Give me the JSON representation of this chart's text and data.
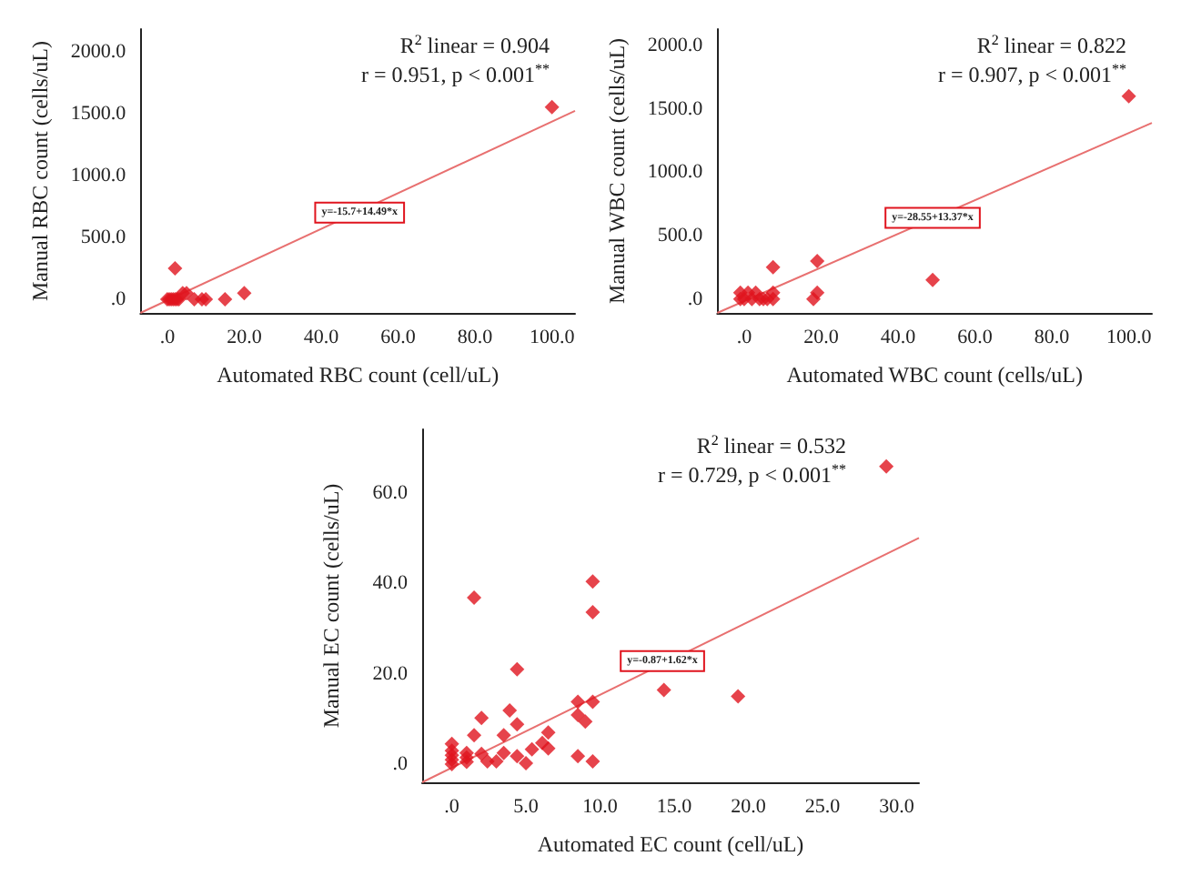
{
  "chart_data": [
    {
      "type": "scatter",
      "xlabel": "Automated RBC count (cell/uL)",
      "ylabel": "Manual RBC count (cells/uL)",
      "xlim": [
        -7,
        106
      ],
      "ylim": [
        -110,
        2180
      ],
      "xticks": [
        {
          "value": 0,
          "label": ".0"
        },
        {
          "value": 20,
          "label": "20.0"
        },
        {
          "value": 40,
          "label": "40.0"
        },
        {
          "value": 60,
          "label": "60.0"
        },
        {
          "value": 80,
          "label": "80.0"
        },
        {
          "value": 100,
          "label": "100.0"
        }
      ],
      "yticks": [
        {
          "value": 0,
          "label": ".0"
        },
        {
          "value": 500,
          "label": "500.0"
        },
        {
          "value": 1000,
          "label": "1000.0"
        },
        {
          "value": 1500,
          "label": "1500.0"
        },
        {
          "value": 2000,
          "label": "2000.0"
        }
      ],
      "grid": false,
      "series": [
        {
          "color": "#e0141e",
          "marker": "diamond",
          "x": [
            0,
            0.5,
            1,
            1.5,
            2,
            2.5,
            2,
            3,
            4,
            5,
            7,
            9,
            10,
            15,
            20,
            100
          ],
          "values": [
            0,
            0,
            0,
            0,
            0,
            0,
            250,
            0,
            50,
            50,
            0,
            0,
            0,
            0,
            50,
            1550
          ]
        },
        {
          "type": "line",
          "color": "#e87070",
          "marker": "none",
          "line_style": "solid",
          "x": [
            -7,
            106
          ],
          "values": [
            -110,
            1520
          ]
        }
      ],
      "annotations": [
        "R$^{2}$ linear = 0.904",
        "r = 0.951, p < 0.001$^{**}$",
        {
          "text": "y=-15.7+14.49*x",
          "x": 50,
          "y": 700
        }
      ]
    },
    {
      "type": "scatter",
      "xlabel": "Automated WBC count (cells/uL)",
      "ylabel": "Manual WBC count (cells/uL)",
      "xlim": [
        -7,
        106
      ],
      "ylim": [
        -110,
        2130
      ],
      "xticks": [
        {
          "value": 0,
          "label": ".0"
        },
        {
          "value": 20,
          "label": "20.0"
        },
        {
          "value": 40,
          "label": "40.0"
        },
        {
          "value": 60,
          "label": "60.0"
        },
        {
          "value": 80,
          "label": "80.0"
        },
        {
          "value": 100,
          "label": "100.0"
        }
      ],
      "yticks": [
        {
          "value": 0,
          "label": ".0"
        },
        {
          "value": 500,
          "label": "500.0"
        },
        {
          "value": 1000,
          "label": "1000.0"
        },
        {
          "value": 1500,
          "label": "1500.0"
        },
        {
          "value": 2000,
          "label": "2000.0"
        }
      ],
      "grid": false,
      "series": [
        {
          "color": "#e0141e",
          "marker": "diamond",
          "x": [
            -1,
            -1,
            0,
            1,
            2,
            3,
            4,
            5,
            6,
            7.5,
            7.5,
            7.5,
            18,
            19,
            19,
            49,
            100
          ],
          "values": [
            50,
            0,
            0,
            50,
            0,
            50,
            0,
            0,
            0,
            50,
            0,
            250,
            0,
            50,
            300,
            150,
            1600
          ]
        },
        {
          "type": "line",
          "color": "#e87070",
          "marker": "none",
          "line_style": "solid",
          "x": [
            -7,
            106
          ],
          "values": [
            -110,
            1390
          ]
        }
      ],
      "annotations": [
        "R$^{2}$ linear = 0.822",
        "r = 0.907, p < 0.001$^{**}$",
        {
          "text": "y=-28.55+13.37*x",
          "x": 49,
          "y": 640
        }
      ]
    },
    {
      "type": "scatter",
      "xlabel": "Automated EC count (cell/uL)",
      "ylabel": "Manual EC count (cells/uL)",
      "xlim": [
        -2,
        31.5
      ],
      "ylim": [
        -4,
        74
      ],
      "xticks": [
        {
          "value": 0,
          "label": ".0"
        },
        {
          "value": 5,
          "label": "5.0"
        },
        {
          "value": 10,
          "label": "10.0"
        },
        {
          "value": 15,
          "label": "15.0"
        },
        {
          "value": 20,
          "label": "20.0"
        },
        {
          "value": 25,
          "label": "25.0"
        },
        {
          "value": 30,
          "label": "30.0"
        }
      ],
      "yticks": [
        {
          "value": 0,
          "label": ".0"
        },
        {
          "value": 20,
          "label": "20.0"
        },
        {
          "value": 40,
          "label": "40.0"
        },
        {
          "value": 60,
          "label": "60.0"
        }
      ],
      "grid": false,
      "series": [
        {
          "color": "#e0141e",
          "marker": "diamond",
          "x": [
            0,
            0,
            0,
            0,
            0,
            1,
            1,
            1,
            1.5,
            1.5,
            2,
            2,
            2.4,
            3,
            3.5,
            3.5,
            3.9,
            4.4,
            4.4,
            4.4,
            5,
            5.4,
            6.1,
            6.5,
            6.5,
            8.5,
            8.5,
            8.5,
            9,
            9.5,
            9.5,
            9.5,
            9.5,
            14.3,
            19.3,
            29.3
          ],
          "values": [
            0,
            1,
            2,
            3,
            4.5,
            0.5,
            1.5,
            2.5,
            36.8,
            6.4,
            10.2,
            2.3,
            0.6,
            0.6,
            6.4,
            2.5,
            11.9,
            21,
            8.8,
            1.8,
            0.2,
            3.3,
            4.7,
            7,
            3.5,
            13.8,
            10.9,
            1.8,
            9.4,
            40.4,
            33.6,
            13.8,
            0.6,
            16.4,
            15,
            65.8
          ]
        },
        {
          "type": "line",
          "color": "#e87070",
          "marker": "none",
          "line_style": "solid",
          "x": [
            -2,
            31.5
          ],
          "values": [
            -4,
            50
          ]
        }
      ],
      "annotations": [
        "R$^{2}$ linear = 0.532",
        "r = 0.729, p < 0.001$^{**}$",
        {
          "text": "y=-0.87+1.62*x",
          "x": 14.2,
          "y": 22.8
        }
      ]
    }
  ]
}
